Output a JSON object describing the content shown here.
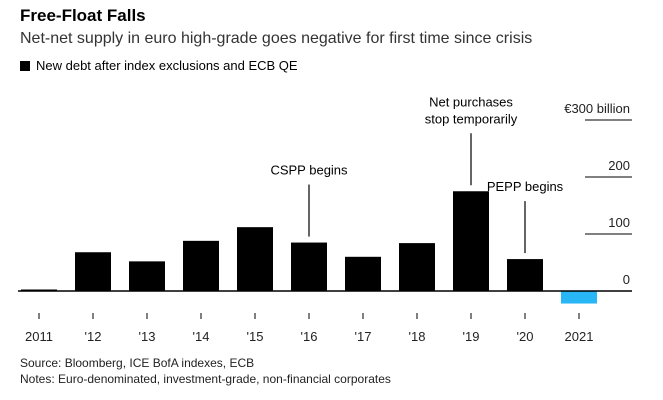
{
  "header": {
    "title": "Free-Float Falls",
    "subtitle": "Net-net supply in euro high-grade goes negative for first time since crisis"
  },
  "legend": {
    "label": "New debt after index exclusions and ECB QE",
    "color": "#000000"
  },
  "footer": {
    "source": "Source: Bloomberg, ICE BofA indexes, ECB",
    "notes": "Notes: Euro-denominated, investment-grade, non-financial corporates"
  },
  "chart_data": {
    "type": "bar",
    "categories": [
      "2011",
      "'12",
      "'13",
      "'14",
      "'15",
      "'16",
      "'17",
      "'18",
      "'19",
      "'20",
      "2021"
    ],
    "series": [
      {
        "name": "New debt after index exclusions and ECB QE",
        "values": [
          1,
          68,
          52,
          88,
          112,
          85,
          60,
          84,
          175,
          56,
          -22
        ]
      }
    ],
    "colors": {
      "positive": "#000000",
      "negative": "#29b6f6"
    },
    "ylim": [
      -30,
      300
    ],
    "yticks": [
      0,
      100,
      200,
      300
    ],
    "ytick_labels": [
      "0",
      "100",
      "200",
      "€300 billion"
    ],
    "xlabel": "",
    "ylabel": "",
    "annotations": [
      {
        "category": "'16",
        "lines": [
          "CSPP begins"
        ]
      },
      {
        "category": "'19",
        "lines": [
          "Net purchases",
          "stop temporarily"
        ]
      },
      {
        "category": "'20",
        "lines": [
          "PEPP begins"
        ]
      }
    ]
  }
}
